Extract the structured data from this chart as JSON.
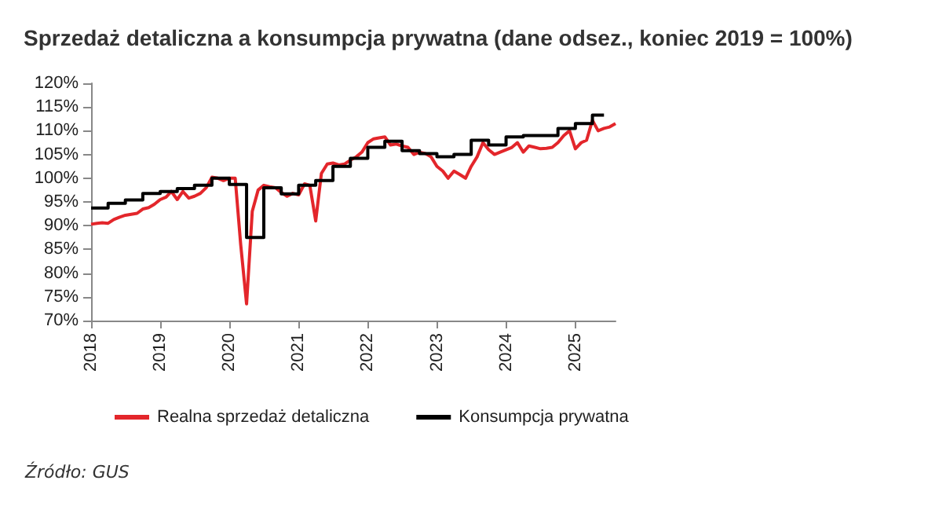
{
  "chart_data": {
    "type": "line",
    "title": "Sprzedaż detaliczna a konsumpcja prywatna (dane odsez., koniec 2019 = 100%)",
    "annotations": [
      "Źródło: GUS"
    ],
    "xlim": [
      "2018-01",
      "2025-08"
    ],
    "xticks": [
      {
        "value": "2018",
        "label": "2018"
      },
      {
        "value": "2019",
        "label": "2019"
      },
      {
        "value": "2020",
        "label": "2020"
      },
      {
        "value": "2021",
        "label": "2021"
      },
      {
        "value": "2022",
        "label": "2022"
      },
      {
        "value": "2023",
        "label": "2023"
      },
      {
        "value": "2024",
        "label": "2024"
      },
      {
        "value": "2025",
        "label": "2025"
      }
    ],
    "ylim": [
      70,
      120
    ],
    "yticks": [
      {
        "value": 70,
        "label": "70%"
      },
      {
        "value": 75,
        "label": "75%"
      },
      {
        "value": 80,
        "label": "80%"
      },
      {
        "value": 85,
        "label": "85%"
      },
      {
        "value": 90,
        "label": "90%"
      },
      {
        "value": 95,
        "label": "95%"
      },
      {
        "value": 100,
        "label": "100%"
      },
      {
        "value": 105,
        "label": "105%"
      },
      {
        "value": 110,
        "label": "110%"
      },
      {
        "value": 115,
        "label": "115%"
      },
      {
        "value": 120,
        "label": "120%"
      }
    ],
    "grid": false,
    "legend": "bottom",
    "marker": "none",
    "line_style": "solid",
    "series": [
      {
        "name": "Realna sprzedaż detaliczna",
        "type": "line",
        "color": "#e3262b",
        "x": [
          "2018-01",
          "2018-02",
          "2018-03",
          "2018-04",
          "2018-05",
          "2018-06",
          "2018-07",
          "2018-08",
          "2018-09",
          "2018-10",
          "2018-11",
          "2018-12",
          "2019-01",
          "2019-02",
          "2019-03",
          "2019-04",
          "2019-05",
          "2019-06",
          "2019-07",
          "2019-08",
          "2019-09",
          "2019-10",
          "2019-11",
          "2019-12",
          "2020-01",
          "2020-02",
          "2020-03",
          "2020-04",
          "2020-05",
          "2020-06",
          "2020-07",
          "2020-08",
          "2020-09",
          "2020-10",
          "2020-11",
          "2020-12",
          "2021-01",
          "2021-02",
          "2021-03",
          "2021-04",
          "2021-05",
          "2021-06",
          "2021-07",
          "2021-08",
          "2021-09",
          "2021-10",
          "2021-11",
          "2021-12",
          "2022-01",
          "2022-02",
          "2022-03",
          "2022-04",
          "2022-05",
          "2022-06",
          "2022-07",
          "2022-08",
          "2022-09",
          "2022-10",
          "2022-11",
          "2022-12",
          "2023-01",
          "2023-02",
          "2023-03",
          "2023-04",
          "2023-05",
          "2023-06",
          "2023-07",
          "2023-08",
          "2023-09",
          "2023-10",
          "2023-11",
          "2023-12",
          "2024-01",
          "2024-02",
          "2024-03",
          "2024-04",
          "2024-05",
          "2024-06",
          "2024-07",
          "2024-08",
          "2024-09",
          "2024-10",
          "2024-11",
          "2024-12",
          "2025-01",
          "2025-02",
          "2025-03",
          "2025-04",
          "2025-05",
          "2025-06",
          "2025-07",
          "2025-08"
        ],
        "values": [
          90.3,
          90.5,
          90.6,
          90.5,
          91.3,
          91.8,
          92.2,
          92.4,
          92.6,
          93.5,
          93.8,
          94.5,
          95.5,
          96.0,
          97.2,
          95.5,
          97.2,
          95.8,
          96.2,
          96.8,
          98.0,
          100.2,
          100.0,
          99.5,
          100.0,
          100.0,
          86.0,
          73.5,
          93.0,
          97.5,
          98.5,
          98.2,
          98.0,
          97.0,
          96.2,
          96.8,
          96.5,
          98.8,
          98.5,
          91.0,
          101.0,
          103.0,
          103.2,
          102.8,
          103.0,
          103.8,
          104.5,
          105.5,
          107.5,
          108.3,
          108.5,
          108.7,
          107.0,
          107.2,
          106.8,
          106.5,
          105.0,
          105.5,
          105.2,
          104.5,
          102.5,
          101.5,
          100.0,
          101.5,
          100.8,
          100.0,
          102.5,
          104.5,
          107.5,
          106.0,
          105.0,
          105.5,
          106.0,
          106.5,
          107.5,
          105.5,
          106.8,
          106.5,
          106.2,
          106.3,
          106.5,
          107.5,
          109.0,
          110.0,
          106.2,
          107.5,
          108.0,
          112.2,
          110.0,
          110.5,
          110.8,
          111.5
        ]
      },
      {
        "name": "Konsumpcja prywatna",
        "type": "step",
        "color": "#000000",
        "x": [
          "2018-01",
          "2018-04",
          "2018-07",
          "2018-10",
          "2019-01",
          "2019-04",
          "2019-07",
          "2019-10",
          "2020-01",
          "2020-04",
          "2020-07",
          "2020-10",
          "2021-01",
          "2021-04",
          "2021-07",
          "2021-10",
          "2022-01",
          "2022-04",
          "2022-07",
          "2022-10",
          "2023-01",
          "2023-04",
          "2023-07",
          "2023-10",
          "2024-01",
          "2024-04",
          "2024-07",
          "2024-10",
          "2025-01",
          "2025-04",
          "2025-06"
        ],
        "values": [
          93.7,
          94.7,
          95.4,
          96.8,
          97.2,
          97.8,
          98.5,
          100.0,
          98.7,
          87.5,
          98.0,
          96.7,
          98.5,
          99.5,
          102.5,
          104.2,
          106.5,
          107.8,
          105.8,
          105.2,
          104.5,
          105.0,
          108.0,
          107.0,
          108.7,
          109.0,
          109.0,
          110.5,
          111.5,
          113.3,
          113.3
        ]
      }
    ]
  }
}
